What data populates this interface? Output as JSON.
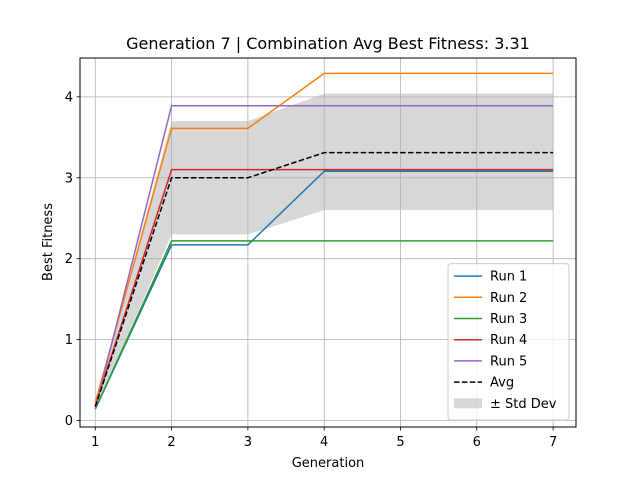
{
  "chart_data": {
    "type": "line",
    "title": "Generation 7 | Combination Avg Best Fitness: 3.31",
    "xlabel": "Generation",
    "ylabel": "Best Fitness",
    "x": [
      1,
      2,
      3,
      4,
      5,
      6,
      7
    ],
    "xlim": [
      0.8,
      7.3
    ],
    "ylim": [
      -0.08,
      4.48
    ],
    "xticks": [
      1,
      2,
      3,
      4,
      5,
      6,
      7
    ],
    "yticks": [
      0,
      1,
      2,
      3,
      4
    ],
    "grid": true,
    "legend_placement": "lower-right",
    "series": [
      {
        "name": "Run 1",
        "color": "#1f77b4",
        "style": "solid",
        "values": [
          0.14,
          2.17,
          2.17,
          3.08,
          3.08,
          3.08,
          3.08
        ]
      },
      {
        "name": "Run 2",
        "color": "#ff7f0e",
        "style": "solid",
        "values": [
          0.22,
          3.61,
          3.61,
          4.29,
          4.29,
          4.29,
          4.29
        ]
      },
      {
        "name": "Run 3",
        "color": "#2ca02c",
        "style": "solid",
        "values": [
          0.14,
          2.22,
          2.22,
          2.22,
          2.22,
          2.22,
          2.22
        ]
      },
      {
        "name": "Run 4",
        "color": "#d62728",
        "style": "solid",
        "values": [
          0.18,
          3.1,
          3.1,
          3.1,
          3.1,
          3.1,
          3.1
        ]
      },
      {
        "name": "Run 5",
        "color": "#9467bd",
        "style": "solid",
        "values": [
          0.14,
          3.89,
          3.89,
          3.89,
          3.89,
          3.89,
          3.89
        ]
      },
      {
        "name": "Avg",
        "color": "#000000",
        "style": "dashed",
        "values": [
          0.17,
          3.0,
          3.0,
          3.31,
          3.31,
          3.31,
          3.31
        ]
      }
    ],
    "band": {
      "name": "± Std Dev",
      "color": "#b0b0b0",
      "lower": [
        0.13,
        2.3,
        2.3,
        2.6,
        2.6,
        2.6,
        2.6
      ],
      "upper": [
        0.21,
        3.7,
        3.7,
        4.04,
        4.04,
        4.04,
        4.04
      ]
    }
  }
}
